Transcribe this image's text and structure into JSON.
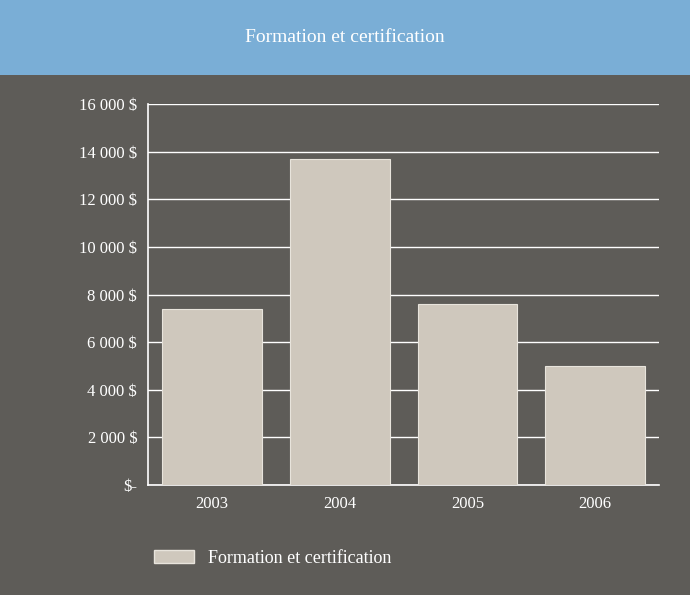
{
  "chart_data": {
    "type": "bar",
    "title": "Formation et certification",
    "categories": [
      "2003",
      "2004",
      "2005",
      "2006"
    ],
    "series": [
      {
        "name": "Formation et certification",
        "color": "#cfc8bd",
        "values": [
          7400,
          13700,
          7600,
          5000
        ]
      }
    ],
    "ylim": [
      0,
      16000
    ],
    "yticks": [
      {
        "value": 0,
        "label": "$-"
      },
      {
        "value": 2000,
        "label": "2 000 $"
      },
      {
        "value": 4000,
        "label": "4 000 $"
      },
      {
        "value": 6000,
        "label": "6 000 $"
      },
      {
        "value": 8000,
        "label": "8 000 $"
      },
      {
        "value": 10000,
        "label": "10 000 $"
      },
      {
        "value": 12000,
        "label": "12 000 $"
      },
      {
        "value": 14000,
        "label": "14 000 $"
      },
      {
        "value": 16000,
        "label": "16 000 $"
      }
    ],
    "grid": true,
    "legend": "lower left"
  }
}
